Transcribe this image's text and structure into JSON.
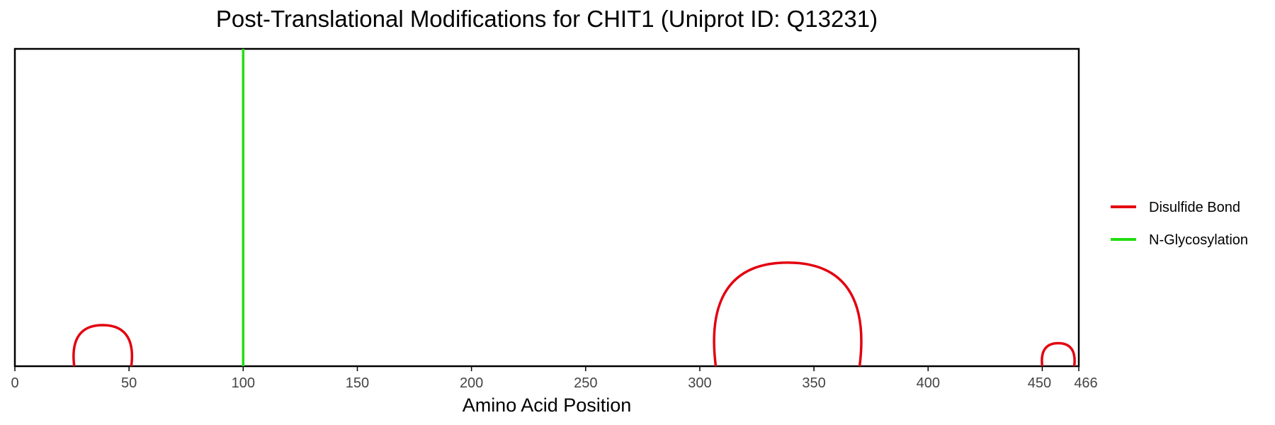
{
  "chart_data": {
    "type": "line",
    "title": "Post-Translational Modifications for CHIT1 (Uniprot ID: Q13231)",
    "xlabel": "Amino Acid Position",
    "ylabel": "",
    "xlim": [
      0,
      466
    ],
    "x_ticks": [
      0,
      50,
      100,
      150,
      200,
      250,
      300,
      350,
      400,
      450,
      466
    ],
    "grid": false,
    "legend_position": "right",
    "colors": {
      "disulfide": "#e3000f",
      "glycosylation": "#22dd11"
    },
    "legend": [
      {
        "label": "Disulfide Bond",
        "key": "disulfide"
      },
      {
        "label": "N-Glycosylation",
        "key": "glycosylation"
      }
    ],
    "disulfide_bonds": [
      {
        "start": 26,
        "end": 51
      },
      {
        "start": 307,
        "end": 370
      },
      {
        "start": 450,
        "end": 464
      }
    ],
    "n_glycosylation": [
      100
    ]
  }
}
